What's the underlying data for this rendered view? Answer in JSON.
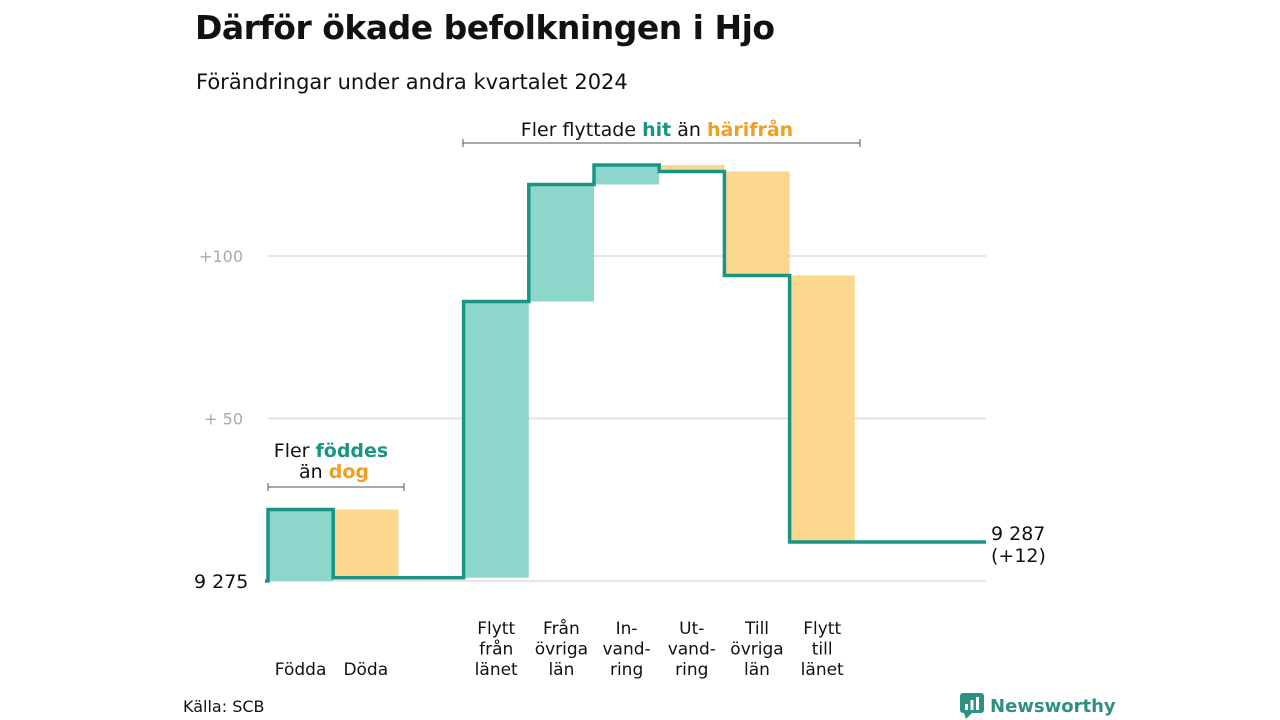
{
  "title": "Därför ökade befolkningen i Hjo",
  "subtitle": "Förändringar under andra kvartalet 2024",
  "source": "Källa: SCB",
  "brand": "Newsworthy",
  "colors": {
    "line": "#1a9585",
    "increase": "#8dd6cc",
    "decrease": "#fad68e",
    "teal_text": "#1a9585",
    "orange_text": "#f0a020",
    "grid": "#dddddd",
    "tick": "#aaaaaa"
  },
  "annotations": {
    "births": {
      "prefix": "Fler",
      "highlight": "föddes",
      "line2_prefix": "än",
      "line2_highlight": "dog"
    },
    "moves": {
      "prefix": "Fler flyttade",
      "highlight1": "hit",
      "middle": "än",
      "highlight2": "härifrån"
    }
  },
  "chart_data": {
    "type": "waterfall",
    "start_label": "9  275",
    "start_value": 0,
    "end_label": "9 287",
    "end_change": "(+12)",
    "end_value": 12,
    "y_ticks": [
      {
        "value": 50,
        "label": "+  50"
      },
      {
        "value": 100,
        "label": "+100"
      }
    ],
    "ylim": [
      0,
      130
    ],
    "categories": [
      {
        "label": [
          "Födda"
        ],
        "change": 22,
        "type": "increase"
      },
      {
        "label": [
          "Döda"
        ],
        "change": -21,
        "type": "decrease"
      },
      {
        "label": [
          ""
        ],
        "change": 0,
        "type": "none"
      },
      {
        "label": [
          "Flytt",
          "från",
          "länet"
        ],
        "change": 85,
        "type": "increase"
      },
      {
        "label": [
          "Från",
          "övriga",
          "län"
        ],
        "change": 36,
        "type": "increase"
      },
      {
        "label": [
          "In-",
          "vand-",
          "ring"
        ],
        "change": 6,
        "type": "increase"
      },
      {
        "label": [
          "Ut-",
          "vand-",
          "ring"
        ],
        "change": -2,
        "type": "decrease"
      },
      {
        "label": [
          "Till",
          "övriga",
          "län"
        ],
        "change": -32,
        "type": "decrease"
      },
      {
        "label": [
          "Flytt",
          "till",
          "länet"
        ],
        "change": -82,
        "type": "decrease"
      }
    ]
  }
}
